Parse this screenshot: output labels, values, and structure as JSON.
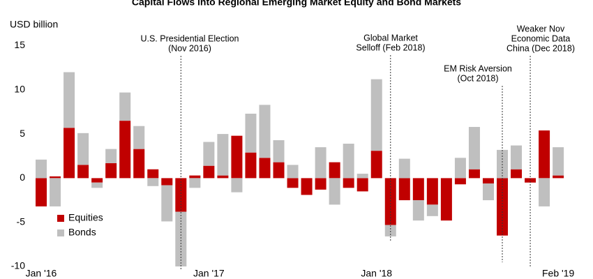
{
  "chart_data": {
    "type": "bar",
    "stacked": true,
    "title": "Capital Flows into Regional Emerging Market Equity and Bond Markets",
    "y_axis_label": "USD billion",
    "categories": [
      "Jan '16",
      null,
      null,
      null,
      null,
      null,
      null,
      null,
      null,
      null,
      null,
      null,
      "Jan '17",
      null,
      null,
      null,
      null,
      null,
      null,
      null,
      null,
      null,
      null,
      null,
      "Jan '18",
      null,
      null,
      null,
      null,
      null,
      null,
      null,
      null,
      null,
      null,
      null,
      null,
      "Feb '19"
    ],
    "series": [
      {
        "name": "Equities",
        "color": "#c00000",
        "values": [
          -3.2,
          0.2,
          5.7,
          1.5,
          -0.5,
          1.7,
          6.5,
          3.3,
          1.0,
          -0.8,
          -3.8,
          0.3,
          1.4,
          0.3,
          4.8,
          2.9,
          2.3,
          1.8,
          -1.1,
          -1.9,
          -1.3,
          1.8,
          -1.1,
          -1.5,
          3.1,
          -5.3,
          -2.5,
          -2.5,
          -3.0,
          -4.8,
          -0.7,
          1.0,
          -0.6,
          -6.5,
          1.0,
          -0.5,
          5.4,
          0.3
        ]
      },
      {
        "name": "Bonds",
        "color": "#bfbfbf",
        "values": [
          2.1,
          -3.2,
          6.3,
          3.6,
          -0.6,
          1.6,
          3.2,
          2.6,
          -0.9,
          -4.1,
          -6.2,
          -1.1,
          2.7,
          4.7,
          -1.6,
          4.4,
          6.0,
          2.5,
          1.5,
          0,
          3.5,
          -3.0,
          3.9,
          0.5,
          8.1,
          -1.3,
          2.2,
          -2.3,
          -1.3,
          0,
          2.3,
          4.8,
          -1.9,
          3.2,
          2.7,
          0,
          -3.2,
          3.2
        ]
      }
    ],
    "ylim": [
      -10,
      15
    ],
    "yticks": [
      -10,
      -5,
      0,
      5,
      10,
      15
    ],
    "legend": "lower left",
    "annotations": [
      {
        "text": [
          "U.S. Presidential Election",
          "(Nov 2016)"
        ]
      },
      {
        "text": [
          "Global Market",
          "Selloff (Feb 2018)"
        ]
      },
      {
        "text": [
          "EM Risk Aversion",
          "(Oct 2018)"
        ]
      },
      {
        "text": [
          "Weaker Nov",
          "Economic Data",
          "China (Dec 2018)"
        ]
      }
    ]
  }
}
